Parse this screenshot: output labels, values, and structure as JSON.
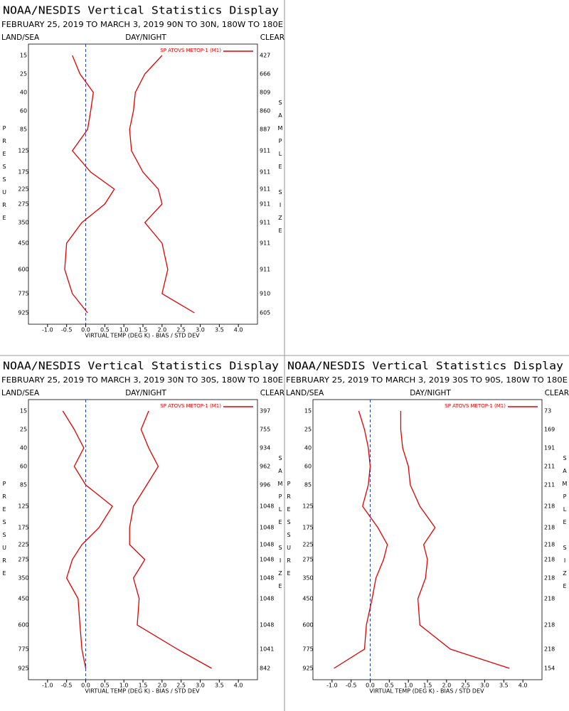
{
  "chart_data": [
    {
      "type": "line",
      "title": "NOAA/NESDIS Vertical Statistics Display",
      "subtitle": "FEBRUARY 25, 2019 TO MARCH 3, 2019  90N TO 30N, 180W TO 180E",
      "land_sea_label": "LAND/SEA",
      "day_night_label": "DAY/NIGHT",
      "clear_label": "CLEAR",
      "xlabel": "VIRTUAL TEMP (DEG K) - BIAS / STD DEV",
      "ylabel": "PRESSURE",
      "y2label": "SAMPLE SIZE",
      "categories": [
        15,
        25,
        40,
        60,
        85,
        125,
        175,
        225,
        275,
        350,
        450,
        600,
        775,
        925
      ],
      "sample_sizes": [
        427,
        666,
        809,
        860,
        887,
        911,
        911,
        911,
        911,
        911,
        911,
        911,
        910,
        605
      ],
      "xlim": [
        -1.5,
        4.5
      ],
      "xticks": [
        {
          "value": -1,
          "label": "-1.0"
        },
        {
          "value": -0.5,
          "label": "-0.5"
        },
        {
          "value": 0,
          "label": "0.0"
        },
        {
          "value": 0.5,
          "label": "0.5"
        },
        {
          "value": 1,
          "label": "1.0"
        },
        {
          "value": 1.5,
          "label": "1.5"
        },
        {
          "value": 2,
          "label": "2.0"
        },
        {
          "value": 2.5,
          "label": "2.5"
        },
        {
          "value": 3,
          "label": "3.0"
        },
        {
          "value": 3.5,
          "label": "3.5"
        },
        {
          "value": 4,
          "label": "4.0"
        }
      ],
      "legend": "upper right",
      "series": [
        {
          "name": "SP ATOVS METOP-1 (M1)",
          "color": "#e00000",
          "bias": [
            -0.35,
            -0.15,
            0.2,
            0.13,
            0.05,
            -0.35,
            0.13,
            0.75,
            0.5,
            -0.1,
            -0.5,
            -0.55,
            -0.35,
            0.05
          ],
          "std_dev": [
            2.0,
            1.55,
            1.3,
            1.25,
            1.15,
            1.2,
            1.5,
            1.9,
            2.0,
            1.55,
            2.0,
            2.15,
            2.0,
            2.85
          ]
        }
      ]
    },
    {
      "type": "line",
      "title": "NOAA/NESDIS Vertical Statistics Display",
      "subtitle": "FEBRUARY 25, 2019 TO MARCH 3, 2019  30N TO 30S, 180W TO 180E",
      "land_sea_label": "LAND/SEA",
      "day_night_label": "DAY/NIGHT",
      "clear_label": "CLEAR",
      "xlabel": "VIRTUAL TEMP (DEG K) - BIAS / STD DEV",
      "ylabel": "PRESSURE",
      "y2label": "SAMPLE SIZE",
      "categories": [
        15,
        25,
        40,
        60,
        85,
        125,
        175,
        225,
        275,
        350,
        450,
        600,
        775,
        925
      ],
      "sample_sizes": [
        397,
        755,
        934,
        962,
        996,
        1048,
        1048,
        1048,
        1048,
        1048,
        1048,
        1048,
        1041,
        842
      ],
      "xlim": [
        -1.5,
        4.5
      ],
      "xticks": [
        {
          "value": -1,
          "label": "-1.0"
        },
        {
          "value": -0.5,
          "label": "-0.5"
        },
        {
          "value": 0,
          "label": "0.0"
        },
        {
          "value": 0.5,
          "label": "0.5"
        },
        {
          "value": 1,
          "label": "1.0"
        },
        {
          "value": 1.5,
          "label": "1.5"
        },
        {
          "value": 2,
          "label": "2.0"
        },
        {
          "value": 2.5,
          "label": "2.5"
        },
        {
          "value": 3,
          "label": "3.0"
        },
        {
          "value": 3.5,
          "label": "3.5"
        },
        {
          "value": 4,
          "label": "4.0"
        }
      ],
      "legend": "upper right",
      "series": [
        {
          "name": "SP ATOVS METOP-1 (M1)",
          "color": "#e00000",
          "bias": [
            -0.6,
            -0.3,
            -0.05,
            -0.3,
            0.0,
            0.7,
            0.35,
            -0.1,
            -0.35,
            -0.5,
            -0.2,
            -0.15,
            -0.1,
            0.0
          ],
          "std_dev": [
            1.65,
            1.45,
            1.65,
            1.9,
            1.6,
            1.25,
            1.15,
            1.15,
            1.55,
            1.25,
            1.4,
            1.35,
            2.4,
            3.3
          ]
        }
      ]
    },
    {
      "type": "line",
      "title": "NOAA/NESDIS Vertical Statistics Display",
      "subtitle": "FEBRUARY 25, 2019 TO MARCH 3, 2019  30S TO 90S, 180W TO 180E",
      "land_sea_label": "LAND/SEA",
      "day_night_label": "DAY/NIGHT",
      "clear_label": "CLEAR",
      "xlabel": "VIRTUAL TEMP (DEG K) - BIAS / STD DEV",
      "ylabel": "PRESSURE",
      "y2label": "SAMPLE SIZE",
      "categories": [
        15,
        25,
        40,
        60,
        85,
        125,
        175,
        225,
        275,
        350,
        450,
        600,
        775,
        925
      ],
      "sample_sizes": [
        73,
        169,
        191,
        211,
        211,
        218,
        218,
        218,
        218,
        218,
        218,
        218,
        218,
        154
      ],
      "xlim": [
        -1.5,
        4.5
      ],
      "xticks": [
        {
          "value": -1,
          "label": "-1.0"
        },
        {
          "value": -0.5,
          "label": "-0.5"
        },
        {
          "value": 0,
          "label": "0.0"
        },
        {
          "value": 0.5,
          "label": "0.5"
        },
        {
          "value": 1,
          "label": "1.0"
        },
        {
          "value": 1.5,
          "label": "1.5"
        },
        {
          "value": 2,
          "label": "2.0"
        },
        {
          "value": 2.5,
          "label": "2.5"
        },
        {
          "value": 3,
          "label": "3.0"
        },
        {
          "value": 3.5,
          "label": "3.5"
        },
        {
          "value": 4,
          "label": "4.0"
        }
      ],
      "legend": "upper right",
      "series": [
        {
          "name": "SP ATOVS METOP-1 (M1)",
          "color": "#e00000",
          "bias": [
            -0.3,
            -0.15,
            -0.05,
            0.0,
            -0.05,
            -0.2,
            0.2,
            0.45,
            0.35,
            0.15,
            0.05,
            -0.1,
            -0.15,
            -0.95
          ],
          "std_dev": [
            0.8,
            0.8,
            0.85,
            1.0,
            1.05,
            1.3,
            1.7,
            1.4,
            1.5,
            1.45,
            1.25,
            1.3,
            2.1,
            3.65
          ]
        }
      ]
    }
  ]
}
